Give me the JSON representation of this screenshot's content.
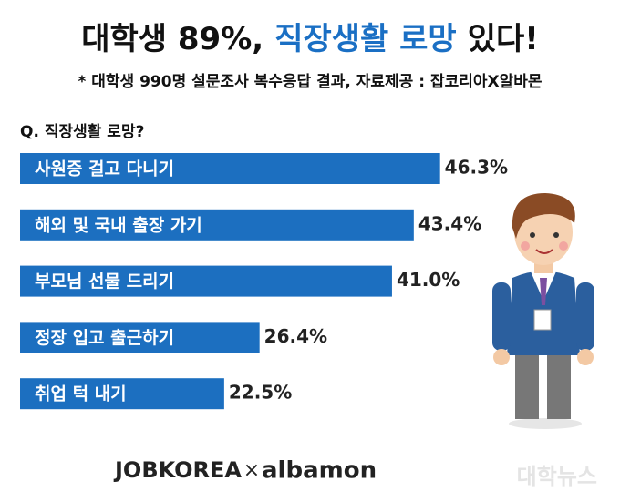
{
  "chart_data": {
    "type": "bar",
    "title_parts": [
      "대학생 89%,",
      "직장생활 로망",
      "있다!"
    ],
    "subtitle": "* 대학생 990명 설문조사 복수응답 결과, 자료제공 : 잡코리아X알바몬",
    "question": "Q. 직장생활 로망?",
    "categories": [
      "사원증 걸고 다니기",
      "해외 및 국내 출장 가기",
      "부모님 선물 드리기",
      "정장 입고 출근하기",
      "취업 턱 내기"
    ],
    "values": [
      46.3,
      43.4,
      41.0,
      26.4,
      22.5
    ],
    "value_labels": [
      "46.3%",
      "43.4%",
      "41.0%",
      "26.4%",
      "22.5%"
    ],
    "color": "#1c6fc0",
    "footer": {
      "left": "JOBKOREA",
      "sep": "×",
      "right": "albamon",
      "watermark": "대학뉴스"
    }
  }
}
